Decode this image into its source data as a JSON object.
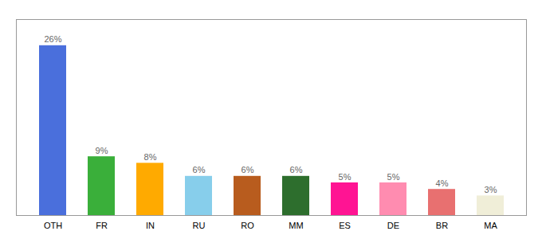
{
  "chart_data": {
    "type": "bar",
    "categories": [
      "OTH",
      "FR",
      "IN",
      "RU",
      "RO",
      "MM",
      "ES",
      "DE",
      "BR",
      "MA"
    ],
    "values": [
      26,
      9,
      8,
      6,
      6,
      6,
      5,
      5,
      4,
      3
    ],
    "value_labels": [
      "26%",
      "9%",
      "8%",
      "6%",
      "6%",
      "6%",
      "5%",
      "5%",
      "4%",
      "3%"
    ],
    "colors": [
      "#4a6fdc",
      "#3aaf3a",
      "#ffaa00",
      "#87ceeb",
      "#b85c1e",
      "#2d6e2d",
      "#ff1493",
      "#ff8cb0",
      "#e87070",
      "#f0eed8"
    ],
    "ylim": [
      0,
      30
    ],
    "data_labels": true,
    "tick_labels": "x",
    "grid": false
  }
}
